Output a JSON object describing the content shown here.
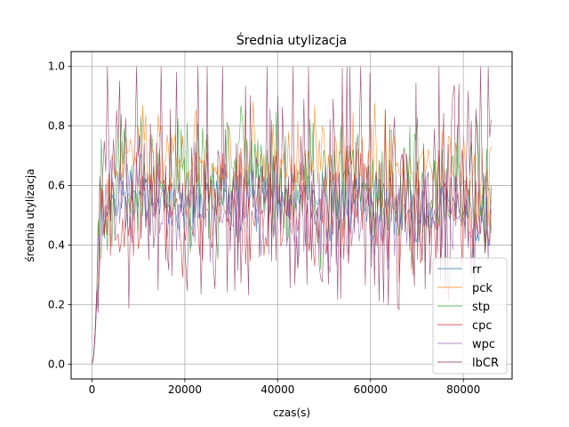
{
  "chart_data": {
    "type": "line",
    "title": "Średnia utylizacja",
    "xlabel": "czas(s)",
    "ylabel": "średnia utylizacja",
    "xlim": [
      -4500,
      90500
    ],
    "ylim": [
      -0.05,
      1.05
    ],
    "xticks": [
      0,
      20000,
      40000,
      60000,
      80000
    ],
    "xtick_labels": [
      "0",
      "20000",
      "40000",
      "60000",
      "80000"
    ],
    "yticks": [
      0.0,
      0.2,
      0.4,
      0.6,
      0.8,
      1.0
    ],
    "ytick_labels": [
      "0.0",
      "0.2",
      "0.4",
      "0.6",
      "0.8",
      "1.0"
    ],
    "grid": true,
    "legend_position": "lower-right",
    "x_range": [
      0,
      86000
    ],
    "series": [
      {
        "name": "rr",
        "color": "#1f77b4",
        "x": [
          0,
          2000,
          5000,
          8000,
          10000,
          15000,
          20000,
          25000,
          30000,
          35000,
          40000,
          45000,
          50000,
          55000,
          60000,
          65000,
          70000,
          75000,
          80000,
          86000
        ],
        "y": [
          0.0,
          0.5,
          0.58,
          0.55,
          0.6,
          0.55,
          0.5,
          0.58,
          0.55,
          0.58,
          0.55,
          0.55,
          0.52,
          0.57,
          0.52,
          0.55,
          0.52,
          0.54,
          0.5,
          0.45
        ]
      },
      {
        "name": "pck",
        "color": "#ff7f0e",
        "x": [
          0,
          2000,
          5000,
          8000,
          10000,
          15000,
          20000,
          25000,
          30000,
          35000,
          40000,
          45000,
          50000,
          55000,
          60000,
          65000,
          70000,
          75000,
          80000,
          86000
        ],
        "y": [
          0.0,
          0.55,
          0.7,
          0.72,
          0.7,
          0.68,
          0.68,
          0.65,
          0.7,
          0.7,
          0.68,
          0.65,
          0.68,
          0.68,
          0.66,
          0.66,
          0.66,
          0.68,
          0.65,
          0.62
        ]
      },
      {
        "name": "stp",
        "color": "#2ca02c",
        "x": [
          0,
          2000,
          5000,
          8000,
          10000,
          15000,
          20000,
          25000,
          30000,
          35000,
          40000,
          45000,
          50000,
          55000,
          60000,
          65000,
          70000,
          75000,
          80000,
          86000
        ],
        "y": [
          0.0,
          0.52,
          0.62,
          0.6,
          0.62,
          0.6,
          0.58,
          0.6,
          0.6,
          0.62,
          0.58,
          0.6,
          0.58,
          0.6,
          0.58,
          0.58,
          0.56,
          0.58,
          0.6,
          0.58
        ]
      },
      {
        "name": "cpc",
        "color": "#d62728",
        "x": [
          0,
          2000,
          5000,
          8000,
          10000,
          15000,
          20000,
          25000,
          30000,
          35000,
          40000,
          45000,
          50000,
          55000,
          60000,
          65000,
          70000,
          75000,
          80000,
          86000
        ],
        "y": [
          0.0,
          0.48,
          0.55,
          0.52,
          0.55,
          0.52,
          0.5,
          0.52,
          0.52,
          0.55,
          0.52,
          0.52,
          0.5,
          0.52,
          0.5,
          0.5,
          0.5,
          0.52,
          0.5,
          0.48
        ]
      },
      {
        "name": "wpc",
        "color": "#9467bd",
        "x": [
          0,
          2000,
          5000,
          8000,
          10000,
          15000,
          20000,
          25000,
          30000,
          35000,
          40000,
          45000,
          50000,
          55000,
          60000,
          65000,
          70000,
          75000,
          80000,
          86000
        ],
        "y": [
          0.0,
          0.5,
          0.55,
          0.52,
          0.55,
          0.52,
          0.5,
          0.52,
          0.5,
          0.52,
          0.5,
          0.5,
          0.48,
          0.5,
          0.48,
          0.48,
          0.48,
          0.48,
          0.48,
          0.45
        ]
      },
      {
        "name": "lbCR",
        "color": "#8c2d5a",
        "x": [
          0,
          2000,
          5000,
          8000,
          10000,
          15000,
          20000,
          25000,
          30000,
          35000,
          40000,
          45000,
          50000,
          55000,
          60000,
          65000,
          70000,
          75000,
          80000,
          86000
        ],
        "y": [
          0.0,
          0.6,
          0.65,
          0.6,
          0.62,
          0.6,
          0.58,
          0.6,
          0.6,
          0.62,
          0.58,
          0.6,
          0.58,
          0.6,
          0.58,
          0.58,
          0.58,
          0.6,
          0.62,
          0.65
        ]
      }
    ]
  }
}
